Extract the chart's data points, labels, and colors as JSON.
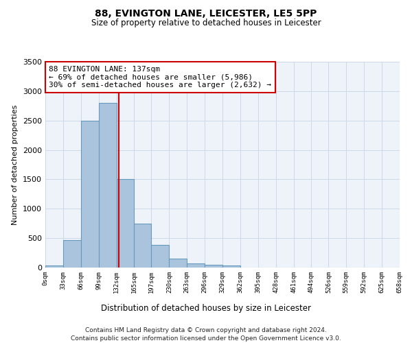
{
  "title": "88, EVINGTON LANE, LEICESTER, LE5 5PP",
  "subtitle": "Size of property relative to detached houses in Leicester",
  "xlabel": "Distribution of detached houses by size in Leicester",
  "ylabel": "Number of detached properties",
  "bar_values": [
    30,
    470,
    2500,
    2800,
    1500,
    750,
    390,
    150,
    70,
    50,
    30,
    0,
    0,
    0,
    0,
    0,
    0,
    0,
    0,
    0
  ],
  "bin_edges": [
    0,
    33,
    66,
    99,
    132,
    165,
    197,
    230,
    263,
    296,
    329,
    362,
    395,
    428,
    461,
    494,
    526,
    559,
    592,
    625,
    658
  ],
  "tick_labels": [
    "0sqm",
    "33sqm",
    "66sqm",
    "99sqm",
    "132sqm",
    "165sqm",
    "197sqm",
    "230sqm",
    "263sqm",
    "296sqm",
    "329sqm",
    "362sqm",
    "395sqm",
    "428sqm",
    "461sqm",
    "494sqm",
    "526sqm",
    "559sqm",
    "592sqm",
    "625sqm",
    "658sqm"
  ],
  "bar_color": "#aac4de",
  "bar_edge_color": "#6699bb",
  "property_line_x": 137,
  "property_line_color": "#cc0000",
  "annotation_line1": "88 EVINGTON LANE: 137sqm",
  "annotation_line2": "← 69% of detached houses are smaller (5,986)",
  "annotation_line3": "30% of semi-detached houses are larger (2,632) →",
  "annotation_box_color": "#cc0000",
  "ylim": [
    0,
    3500
  ],
  "yticks": [
    0,
    500,
    1000,
    1500,
    2000,
    2500,
    3000,
    3500
  ],
  "grid_color": "#ccd9e8",
  "background_color": "#eef3fa",
  "footer_line1": "Contains HM Land Registry data © Crown copyright and database right 2024.",
  "footer_line2": "Contains public sector information licensed under the Open Government Licence v3.0."
}
